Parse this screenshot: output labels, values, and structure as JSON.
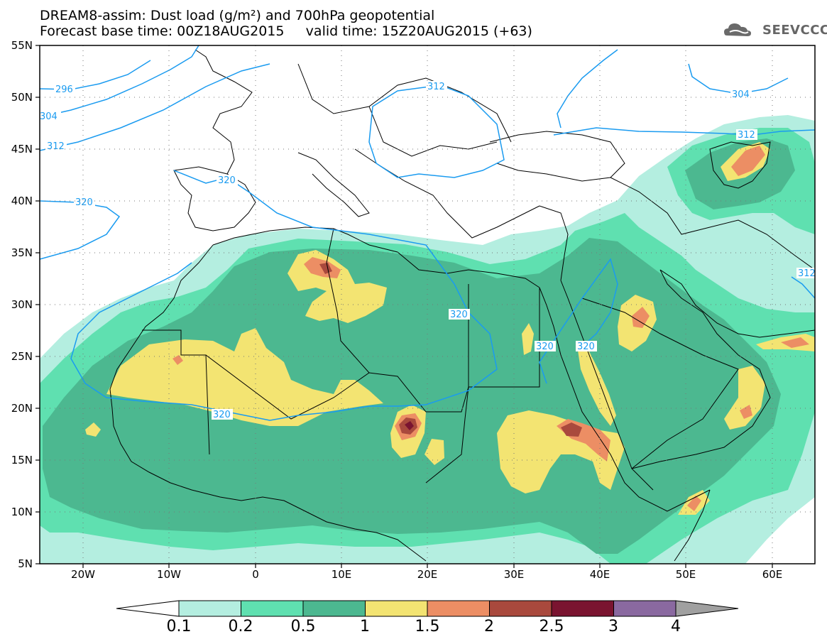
{
  "header": {
    "title_line1": "DREAM8-assim: Dust load (g/m²) and 700hPa geopotential",
    "title_line2": "Forecast base time: 00Z18AUG2015     valid time: 15Z20AUG2015 (+63)",
    "logo_text": "SEEVCCC"
  },
  "axes": {
    "lat_labels": [
      "55N",
      "50N",
      "45N",
      "40N",
      "35N",
      "30N",
      "25N",
      "20N",
      "15N",
      "10N",
      "5N"
    ],
    "lon_labels": [
      "20W",
      "10W",
      "0",
      "10E",
      "20E",
      "30E",
      "40E",
      "50E",
      "60E"
    ]
  },
  "contour_labels": [
    "296",
    "304",
    "312",
    "320",
    "312",
    "320",
    "320",
    "320",
    "320",
    "320",
    "312",
    "304",
    "312"
  ],
  "legend": {
    "labels": [
      "0.1",
      "0.2",
      "0.5",
      "1",
      "1.5",
      "2",
      "2.5",
      "3",
      "4"
    ],
    "colors": [
      "#b4eee0",
      "#5fe0b0",
      "#4cb890",
      "#f3e472",
      "#ec8e64",
      "#a9493d",
      "#7a1430",
      "#8a69a0",
      "#a0a0a0"
    ]
  },
  "map_colors": {
    "level_01": "#b4eee0",
    "level_02": "#5fe0b0",
    "level_05": "#4cb890",
    "level_1": "#f3e472",
    "level_15": "#ec8e64",
    "level_2": "#a9493d",
    "level_25": "#7a1430",
    "contour": "#1a9bf0"
  }
}
